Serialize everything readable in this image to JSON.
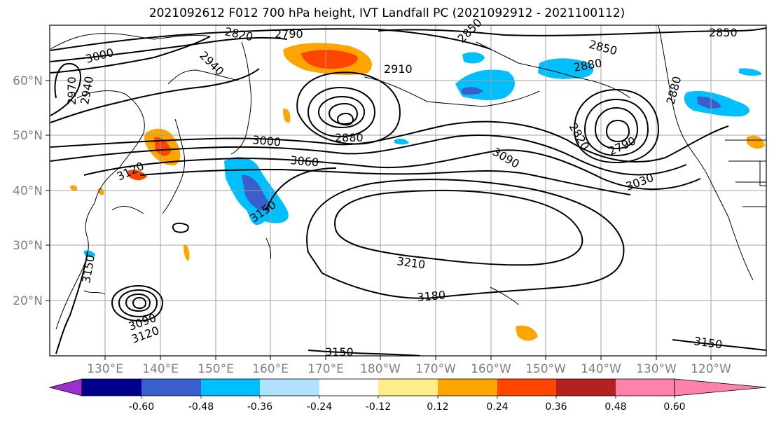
{
  "title": "2021092612 F012 700 hPa height, IVT Landfall PC (2021092912 - 2021100112)",
  "lon_ticks": [
    "130°E",
    "140°E",
    "150°E",
    "160°E",
    "170°E",
    "180°W",
    "170°W",
    "160°W",
    "150°W",
    "140°W",
    "130°W",
    "120°W"
  ],
  "lat_ticks": [
    "60°N",
    "50°N",
    "40°N",
    "30°N",
    "20°N"
  ],
  "contour_labels": [
    "3000",
    "2820",
    "2790",
    "2850",
    "2910",
    "2940",
    "2970",
    "2940",
    "2850",
    "2850",
    "2880",
    "2880",
    "3000",
    "3060",
    "3090",
    "2820",
    "2790",
    "3030",
    "3120",
    "3150",
    "3210",
    "3180",
    "3150",
    "3150",
    "3090",
    "3120",
    "3150",
    "2880"
  ],
  "colorbar": {
    "colors": [
      "#9932cc",
      "#00008b",
      "#3a5fcd",
      "#00bfff",
      "#b0e2ff",
      "#ffffff",
      "#ffec8b",
      "#ffa500",
      "#ff4500",
      "#b22222",
      "#ff82ab"
    ],
    "labels": [
      "-0.60",
      "-0.48",
      "-0.36",
      "-0.24",
      "-0.12",
      "0.12",
      "0.24",
      "0.36",
      "0.48",
      "0.60"
    ]
  },
  "legend": {
    "height_contour_color": "#000000",
    "coastline_color": "#000000",
    "grid_color": "#a0a0a0"
  }
}
